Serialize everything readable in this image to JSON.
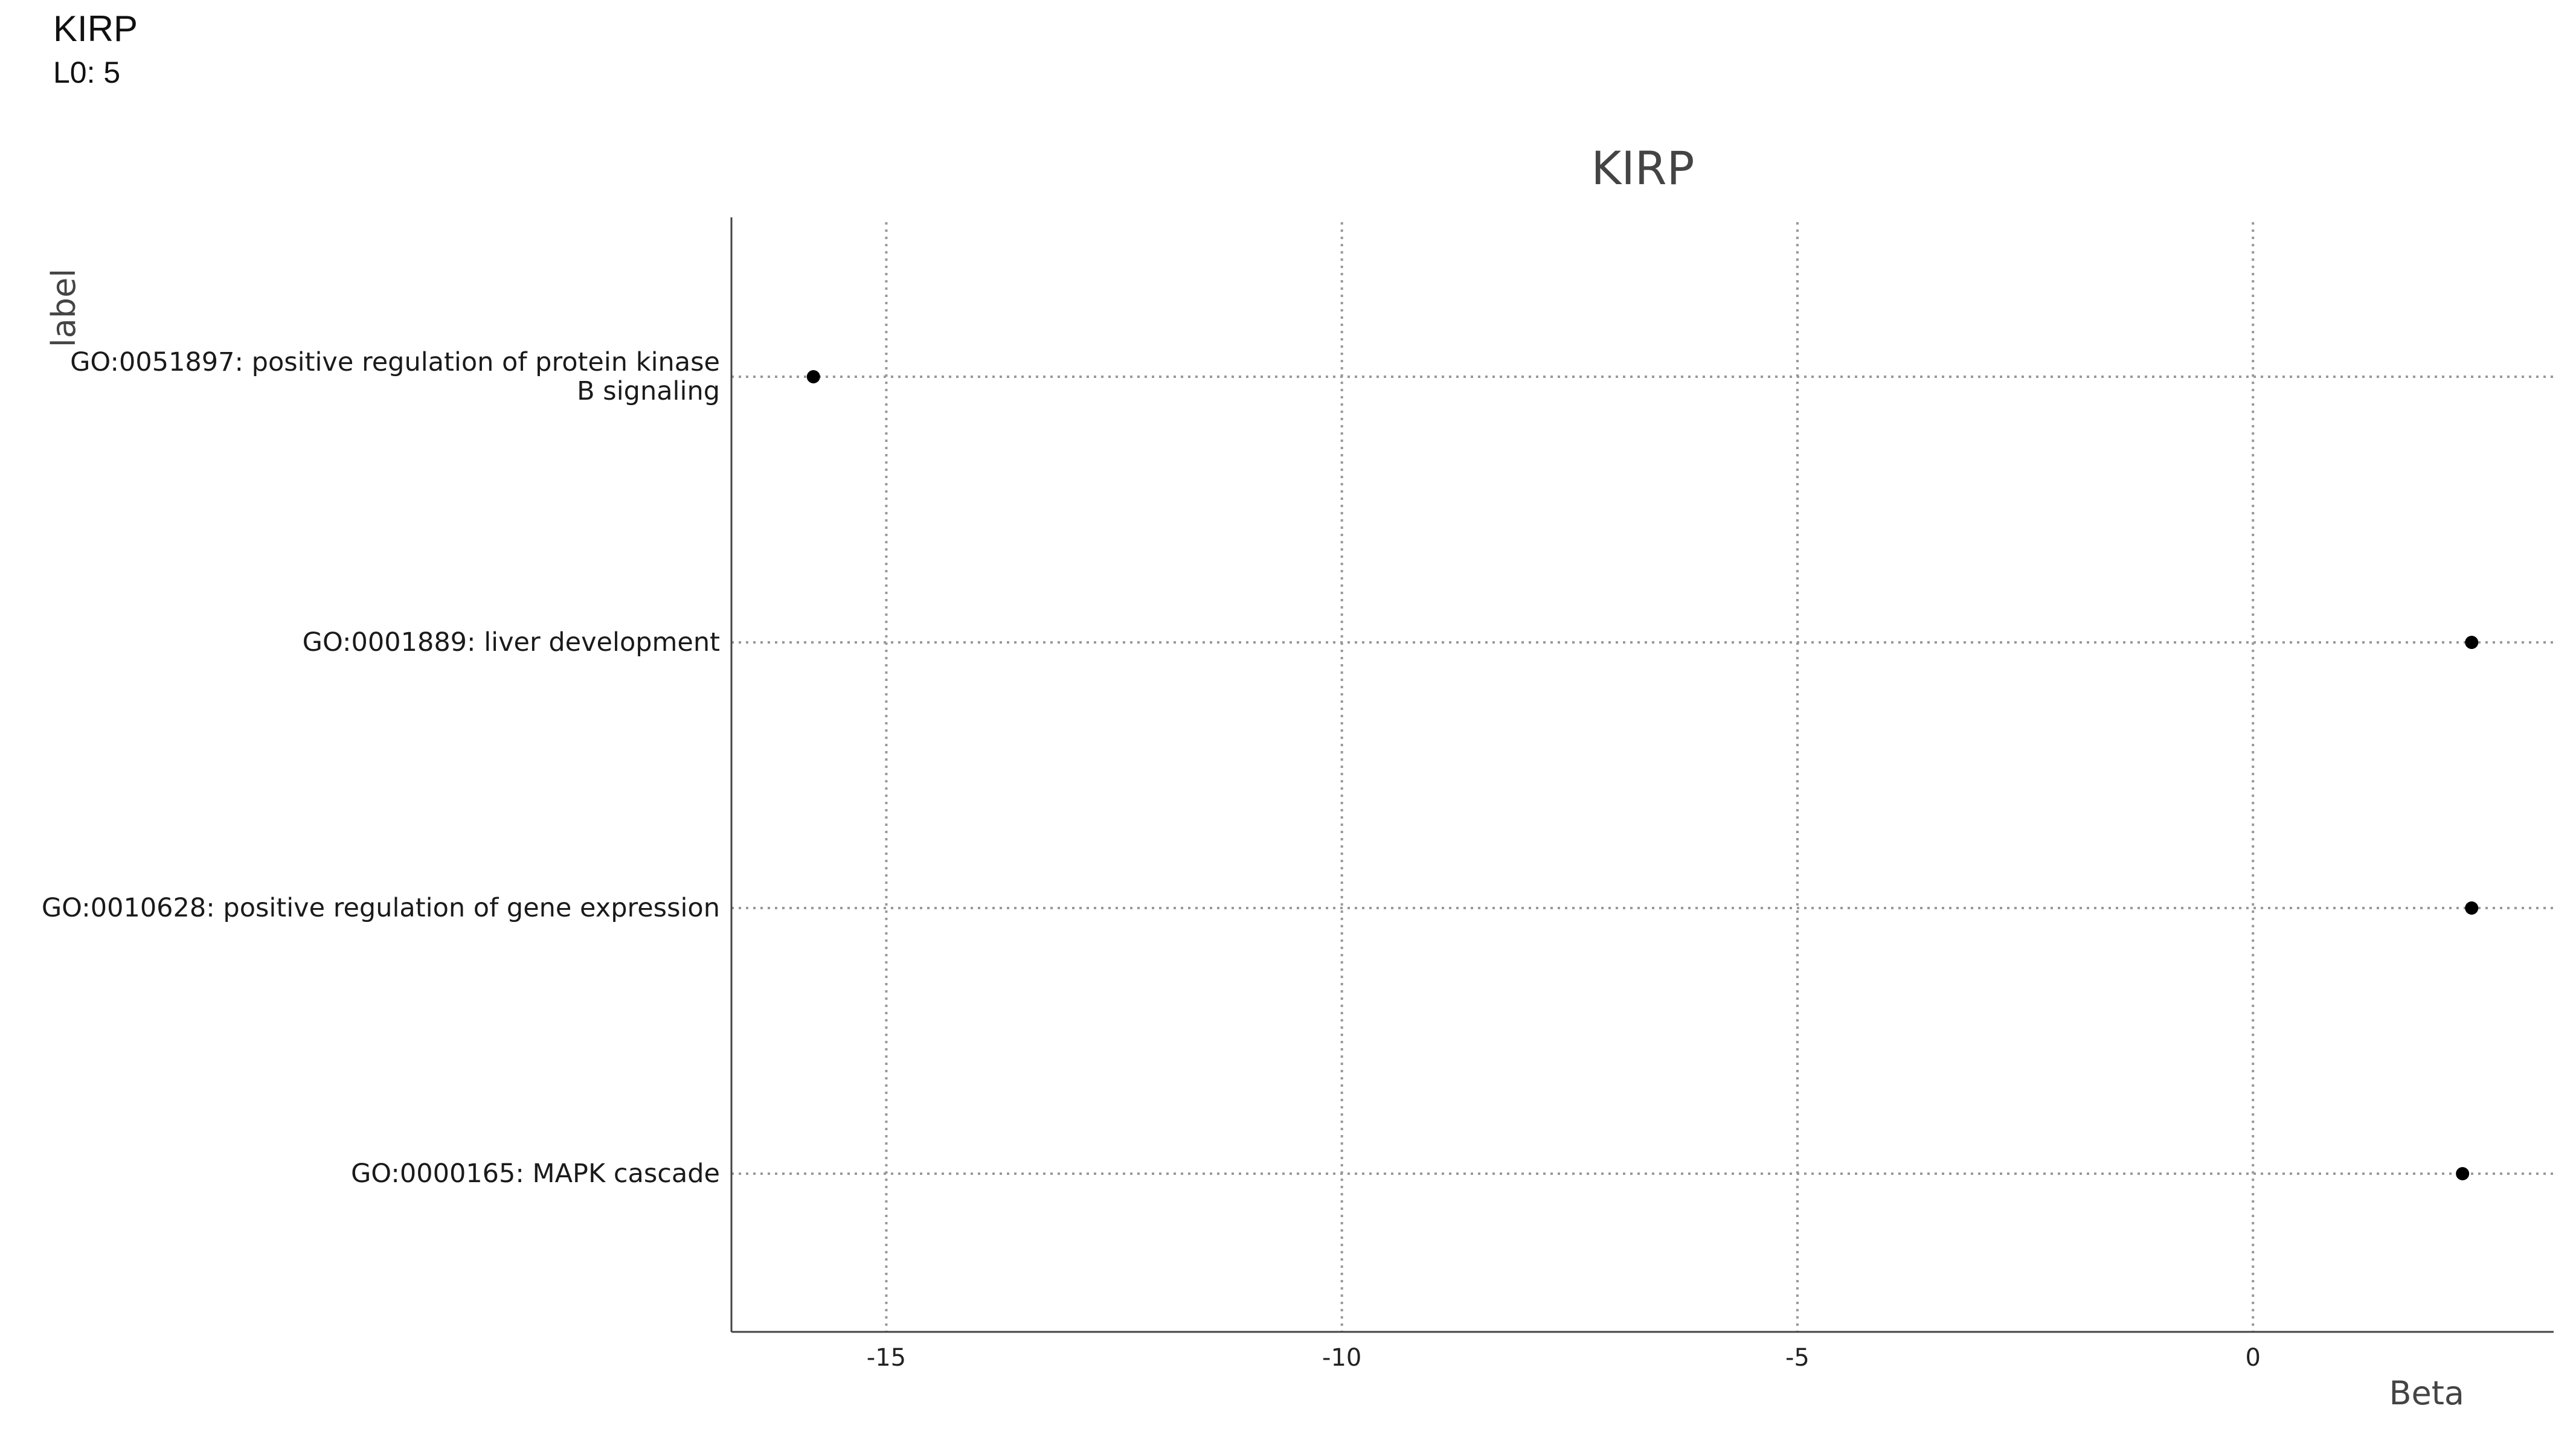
{
  "header": {
    "title": "KIRP",
    "subtitle": "L0: 5"
  },
  "chart_data": {
    "type": "scatter",
    "title": "KIRP",
    "xlabel": "Beta",
    "ylabel": "label",
    "xlim": [
      -16.7,
      3.3
    ],
    "x_ticks": [
      -15,
      -10,
      -5,
      0
    ],
    "x_tick_labels": [
      "-15",
      "-10",
      "-5",
      "0"
    ],
    "grid": true,
    "categories": [
      "GO:0051897: positive regulation of protein kinase B signaling",
      "GO:0001889: liver development",
      "GO:0010628: positive regulation of gene expression",
      "GO:0000165: MAPK cascade"
    ],
    "category_display_lines": [
      [
        "GO:0051897: positive regulation of protein kinase",
        "B signaling"
      ],
      [
        "GO:0001889: liver development"
      ],
      [
        "GO:0010628: positive regulation of gene expression"
      ],
      [
        "GO:0000165: MAPK cascade"
      ]
    ],
    "values": [
      -15.8,
      2.4,
      2.4,
      2.3
    ],
    "colors": {
      "point": "#000000",
      "grid": "#999999",
      "axis": "#444444",
      "title": "#444444"
    }
  }
}
